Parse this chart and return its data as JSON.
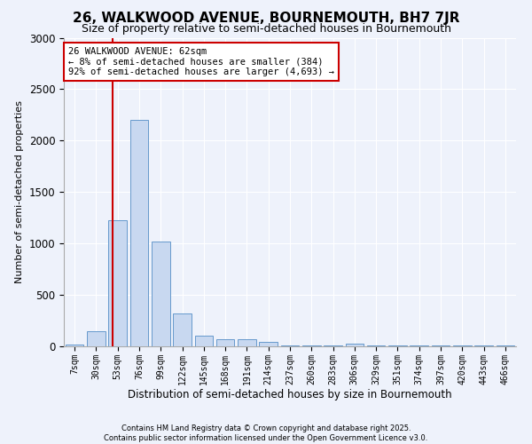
{
  "title": "26, WALKWOOD AVENUE, BOURNEMOUTH, BH7 7JR",
  "subtitle": "Size of property relative to semi-detached houses in Bournemouth",
  "xlabel": "Distribution of semi-detached houses by size in Bournemouth",
  "ylabel": "Number of semi-detached properties",
  "bar_color": "#c8d8f0",
  "bar_edge_color": "#6699cc",
  "categories": [
    "7sqm",
    "30sqm",
    "53sqm",
    "76sqm",
    "99sqm",
    "122sqm",
    "145sqm",
    "168sqm",
    "191sqm",
    "214sqm",
    "237sqm",
    "260sqm",
    "283sqm",
    "306sqm",
    "329sqm",
    "351sqm",
    "374sqm",
    "397sqm",
    "420sqm",
    "443sqm",
    "466sqm"
  ],
  "values": [
    20,
    150,
    1230,
    2200,
    1020,
    320,
    100,
    65,
    65,
    45,
    5,
    5,
    5,
    30,
    5,
    5,
    5,
    5,
    5,
    5,
    5
  ],
  "ylim": [
    0,
    3000
  ],
  "yticks": [
    0,
    500,
    1000,
    1500,
    2000,
    2500,
    3000
  ],
  "property_line_x": 1.75,
  "property_line_color": "#cc0000",
  "annotation_title": "26 WALKWOOD AVENUE: 62sqm",
  "annotation_line1": "← 8% of semi-detached houses are smaller (384)",
  "annotation_line2": "92% of semi-detached houses are larger (4,693) →",
  "annotation_box_color": "#cc0000",
  "annotation_box_fill": "#ffffff",
  "footer_line1": "Contains HM Land Registry data © Crown copyright and database right 2025.",
  "footer_line2": "Contains public sector information licensed under the Open Government Licence v3.0.",
  "background_color": "#eef2fb",
  "grid_color": "#ffffff",
  "title_fontsize": 11,
  "subtitle_fontsize": 9,
  "tick_fontsize": 7,
  "ylabel_fontsize": 8,
  "xlabel_fontsize": 8.5
}
